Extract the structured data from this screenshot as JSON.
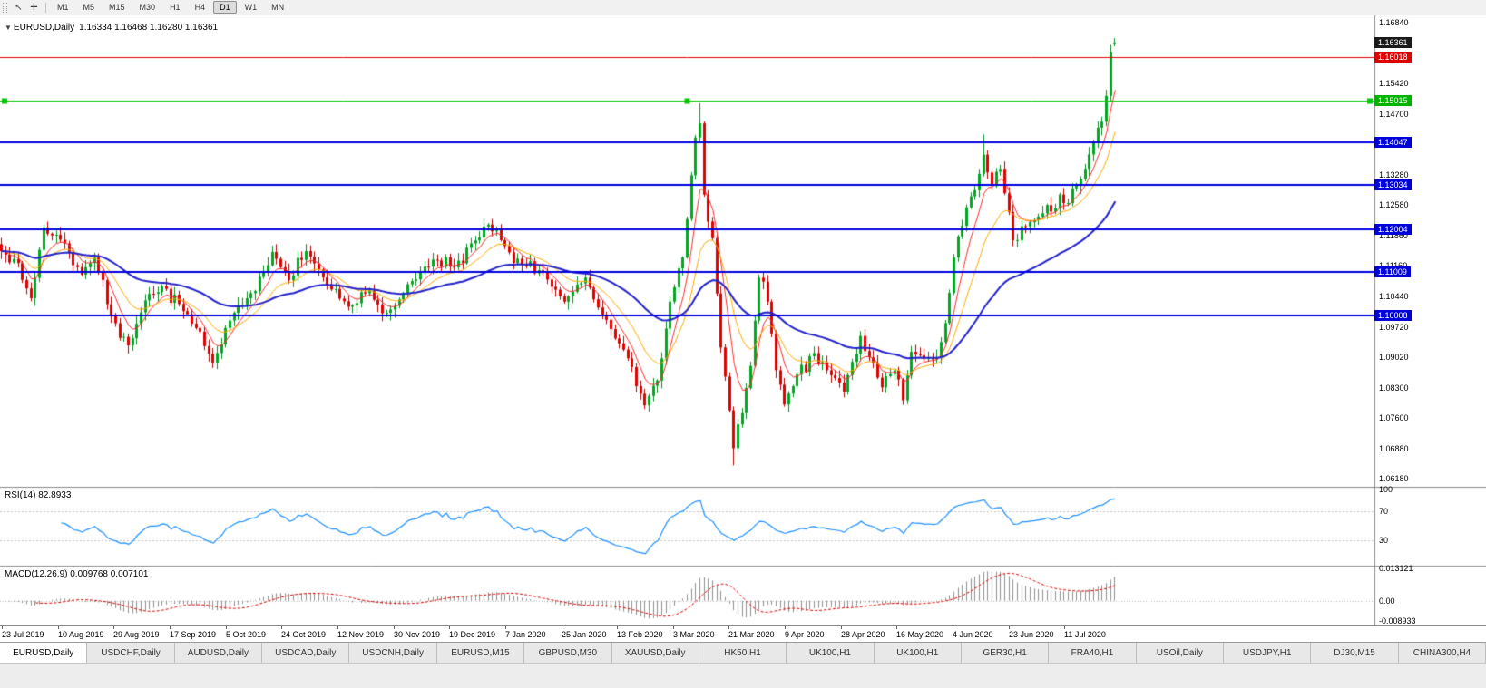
{
  "toolbar": {
    "icons": [
      {
        "name": "pointer-icon",
        "glyph": "↖"
      },
      {
        "name": "crosshair-icon",
        "glyph": "✛"
      }
    ],
    "timeframes": [
      "M1",
      "M5",
      "M15",
      "M30",
      "H1",
      "H4",
      "D1",
      "W1",
      "MN"
    ],
    "active_timeframe": "D1"
  },
  "chart": {
    "collapse_icon": "▼",
    "title": "EURUSD,Daily",
    "ohlc": "1.16334 1.16468 1.16280 1.16361"
  },
  "price_axis": {
    "badges": [
      {
        "label": "1.16361",
        "bg": "#1a1a1a"
      },
      {
        "label": "1.16018",
        "bg": "#e00000"
      },
      {
        "label": "1.15015",
        "bg": "#00b400"
      },
      {
        "label": "1.14047",
        "bg": "#0000d8"
      },
      {
        "label": "1.13034",
        "bg": "#0000d8"
      },
      {
        "label": "1.12004",
        "bg": "#0000d8"
      },
      {
        "label": "1.11009",
        "bg": "#0000d8"
      },
      {
        "label": "1.10008",
        "bg": "#0000d8"
      }
    ]
  },
  "rsi_panel": {
    "label": "RSI(14)",
    "value": "82.8933",
    "ticks": [
      {
        "label": "100",
        "value": 100
      },
      {
        "label": "70",
        "value": 70
      },
      {
        "label": "30",
        "value": 30
      }
    ]
  },
  "macd_panel": {
    "label": "MACD(12,26,9)",
    "values": "0.009768 0.007101",
    "range": [
      -0.008933,
      0.013121
    ],
    "ticks": [
      {
        "label": "0.013121",
        "value": 0.013121
      },
      {
        "label": "0.00",
        "value": 0
      },
      {
        "label": "-0.008933",
        "value": -0.008933
      }
    ]
  },
  "tabs": [
    "EURUSD,Daily",
    "USDCHF,Daily",
    "AUDUSD,Daily",
    "USDCAD,Daily",
    "USDCNH,Daily",
    "EURUSD,M15",
    "GBPUSD,M30",
    "XAUUSD,Daily",
    "HK50,H1",
    "UK100,H1",
    "UK100,H1",
    "GER30,H1",
    "FRA40,H1",
    "USOil,Daily",
    "USDJPY,H1",
    "DJ30,M15",
    "CHINA300,H4"
  ],
  "active_tab_index": 0,
  "chart_data": {
    "type": "candlestick",
    "symbol": "EURUSD",
    "timeframe": "Daily",
    "bars": 264,
    "price_range": [
      1.06,
      1.17
    ],
    "up_color": "#00a821",
    "down_color": "#e00000",
    "price_axis_ticks": [
      "1.16840",
      "1.15420",
      "1.14700",
      "1.13980",
      "1.13280",
      "1.12580",
      "1.11860",
      "1.11160",
      "1.10440",
      "1.09720",
      "1.09020",
      "1.08300",
      "1.07600",
      "1.06880",
      "1.06180"
    ],
    "x_labels": [
      "23 Jul 2019",
      "10 Aug 2019",
      "29 Aug 2019",
      "17 Sep 2019",
      "5 Oct 2019",
      "24 Oct 2019",
      "12 Nov 2019",
      "30 Nov 2019",
      "19 Dec 2019",
      "7 Jan 2020",
      "25 Jan 2020",
      "13 Feb 2020",
      "3 Mar 2020",
      "21 Mar 2020",
      "9 Apr 2020",
      "28 Apr 2020",
      "16 May 2020",
      "4 Jun 2020",
      "23 Jun 2020",
      "11 Jul 2020"
    ],
    "waypoints": [
      [
        0,
        1.115
      ],
      [
        4,
        1.1122
      ],
      [
        7,
        1.104
      ],
      [
        10,
        1.1205
      ],
      [
        15,
        1.1168
      ],
      [
        19,
        1.1095
      ],
      [
        22,
        1.1135
      ],
      [
        26,
        1.1
      ],
      [
        30,
        1.093
      ],
      [
        34,
        1.1035
      ],
      [
        38,
        1.1068
      ],
      [
        43,
        1.101
      ],
      [
        47,
        1.0962
      ],
      [
        50,
        1.089
      ],
      [
        54,
        1.0988
      ],
      [
        58,
        1.104
      ],
      [
        62,
        1.11
      ],
      [
        64,
        1.1148
      ],
      [
        68,
        1.1082
      ],
      [
        72,
        1.115
      ],
      [
        77,
        1.1072
      ],
      [
        82,
        1.102
      ],
      [
        87,
        1.1058
      ],
      [
        90,
        1.1005
      ],
      [
        93,
        1.1022
      ],
      [
        97,
        1.108
      ],
      [
        102,
        1.113
      ],
      [
        107,
        1.1112
      ],
      [
        111,
        1.1168
      ],
      [
        115,
        1.1212
      ],
      [
        119,
        1.1162
      ],
      [
        123,
        1.1118
      ],
      [
        128,
        1.1102
      ],
      [
        133,
        1.1032
      ],
      [
        138,
        1.1088
      ],
      [
        142,
        1.1
      ],
      [
        147,
        1.092
      ],
      [
        152,
        1.079
      ],
      [
        155,
        1.0848
      ],
      [
        158,
        1.1032
      ],
      [
        161,
        1.1135
      ],
      [
        164,
        1.1415
      ],
      [
        165,
        1.1448
      ],
      [
        166,
        1.1282
      ],
      [
        168,
        1.118
      ],
      [
        170,
        1.0925
      ],
      [
        173,
        1.069
      ],
      [
        175,
        1.0772
      ],
      [
        177,
        1.0882
      ],
      [
        179,
        1.1088
      ],
      [
        181,
        1.1032
      ],
      [
        183,
        1.0872
      ],
      [
        185,
        1.0792
      ],
      [
        188,
        1.0862
      ],
      [
        192,
        1.0912
      ],
      [
        195,
        1.0872
      ],
      [
        199,
        1.0822
      ],
      [
        203,
        1.0952
      ],
      [
        205,
        1.0902
      ],
      [
        208,
        1.0832
      ],
      [
        211,
        1.0872
      ],
      [
        213,
        1.0802
      ],
      [
        215,
        1.0915
      ],
      [
        218,
        1.0898
      ],
      [
        221,
        1.0902
      ],
      [
        223,
        1.0982
      ],
      [
        225,
        1.1135
      ],
      [
        228,
        1.1252
      ],
      [
        230,
        1.1292
      ],
      [
        232,
        1.1375
      ],
      [
        234,
        1.1302
      ],
      [
        236,
        1.1342
      ],
      [
        239,
        1.1175
      ],
      [
        241,
        1.1208
      ],
      [
        244,
        1.1222
      ],
      [
        246,
        1.1238
      ],
      [
        248,
        1.1242
      ],
      [
        250,
        1.1282
      ],
      [
        252,
        1.1262
      ],
      [
        254,
        1.1302
      ],
      [
        256,
        1.1342
      ],
      [
        258,
        1.1402
      ],
      [
        260,
        1.1452
      ],
      [
        261,
        1.1512
      ],
      [
        262,
        1.1615
      ],
      [
        263,
        1.16361
      ]
    ],
    "last_bar": {
      "open": 1.16334,
      "high": 1.16468,
      "low": 1.1628,
      "close": 1.16361
    },
    "forced_extremes": [
      {
        "index": 165,
        "type": "high",
        "price": 1.1495
      },
      {
        "index": 173,
        "type": "low",
        "price": 1.065
      },
      {
        "index": 232,
        "type": "high",
        "price": 1.1422
      }
    ],
    "horizontal_levels": [
      {
        "price": 1.16018,
        "color": "#e00000",
        "width": 1
      },
      {
        "price": 1.15015,
        "color": "#00c800",
        "width": 1,
        "selected": true
      },
      {
        "price": 1.14047,
        "color": "#0000e0",
        "width": 2
      },
      {
        "price": 1.13034,
        "color": "#0000e0",
        "width": 2
      },
      {
        "price": 1.12004,
        "color": "#0000e0",
        "width": 2
      },
      {
        "price": 1.11009,
        "color": "#0000e0",
        "width": 2
      },
      {
        "price": 1.10008,
        "color": "#0000e0",
        "width": 2
      }
    ],
    "moving_averages": [
      {
        "period": 6,
        "color": "#ff2a2a",
        "width": 1
      },
      {
        "period": 14,
        "color": "#ffaa00",
        "width": 1
      },
      {
        "period": 45,
        "color": "#2222cc",
        "width": 2
      }
    ],
    "indicators": [
      {
        "name": "RSI",
        "params": "14",
        "current": 82.8933,
        "levels": [
          30,
          70
        ],
        "range": [
          0,
          100
        ],
        "color": "#1e90ff"
      },
      {
        "name": "MACD",
        "params": "12,26,9",
        "current_macd": 0.009768,
        "current_signal": 0.007101,
        "range": [
          -0.008933,
          0.013121
        ],
        "histogram_color": "#8f8f8f",
        "signal_color": "#e00000"
      }
    ]
  }
}
